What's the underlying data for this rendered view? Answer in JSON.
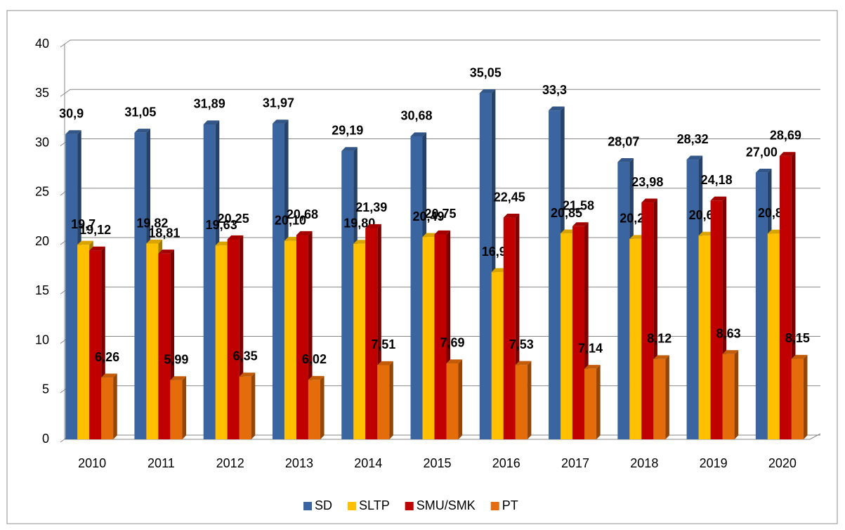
{
  "chart_data": {
    "type": "bar3d",
    "categories": [
      "2010",
      "2011",
      "2012",
      "2013",
      "2014",
      "2015",
      "2016",
      "2017",
      "2018",
      "2019",
      "2020"
    ],
    "series": [
      {
        "name": "SD",
        "color": "#3b65a0",
        "values": [
          30.9,
          31.05,
          31.89,
          31.97,
          29.19,
          30.68,
          35.05,
          33.3,
          28.07,
          28.32,
          27.0
        ],
        "value_labels": [
          "30,9",
          "31,05",
          "31,89",
          "31,97",
          "29,19",
          "30,68",
          "35,05",
          "33,3",
          "28,07",
          "28,32",
          "27,00"
        ]
      },
      {
        "name": "SLTP",
        "color": "#ffc000",
        "values": [
          19.7,
          19.82,
          19.63,
          20.1,
          19.8,
          20.49,
          16.93,
          20.85,
          20.29,
          20.62,
          20.83
        ],
        "value_labels": [
          "19,7",
          "19,82",
          "19,63",
          "20,10",
          "19,80",
          "20,49",
          "16,93",
          "20,85",
          "20,29",
          "20,62",
          "20,83"
        ]
      },
      {
        "name": "SMU/SMK",
        "color": "#c00000",
        "values": [
          19.12,
          18.81,
          20.25,
          20.68,
          21.39,
          20.75,
          22.45,
          21.58,
          23.98,
          24.18,
          28.69
        ],
        "value_labels": [
          "19,12",
          "18,81",
          "20,25",
          "20,68",
          "21,39",
          "20,75",
          "22,45",
          "21,58",
          "23,98",
          "24,18",
          "28,69"
        ]
      },
      {
        "name": "PT",
        "color": "#e46c0a",
        "values": [
          6.26,
          5.99,
          6.35,
          6.02,
          7.51,
          7.69,
          7.53,
          7.14,
          8.12,
          8.63,
          8.15
        ],
        "value_labels": [
          "6,26",
          "5,99",
          "6,35",
          "6,02",
          "7,51",
          "7,69",
          "7,53",
          "7,14",
          "8,12",
          "8,63",
          "8,15"
        ]
      }
    ],
    "ylim": [
      0,
      40
    ],
    "yticks": [
      0,
      5,
      10,
      15,
      20,
      25,
      30,
      35,
      40
    ],
    "grid": true,
    "legend": "bottom"
  }
}
